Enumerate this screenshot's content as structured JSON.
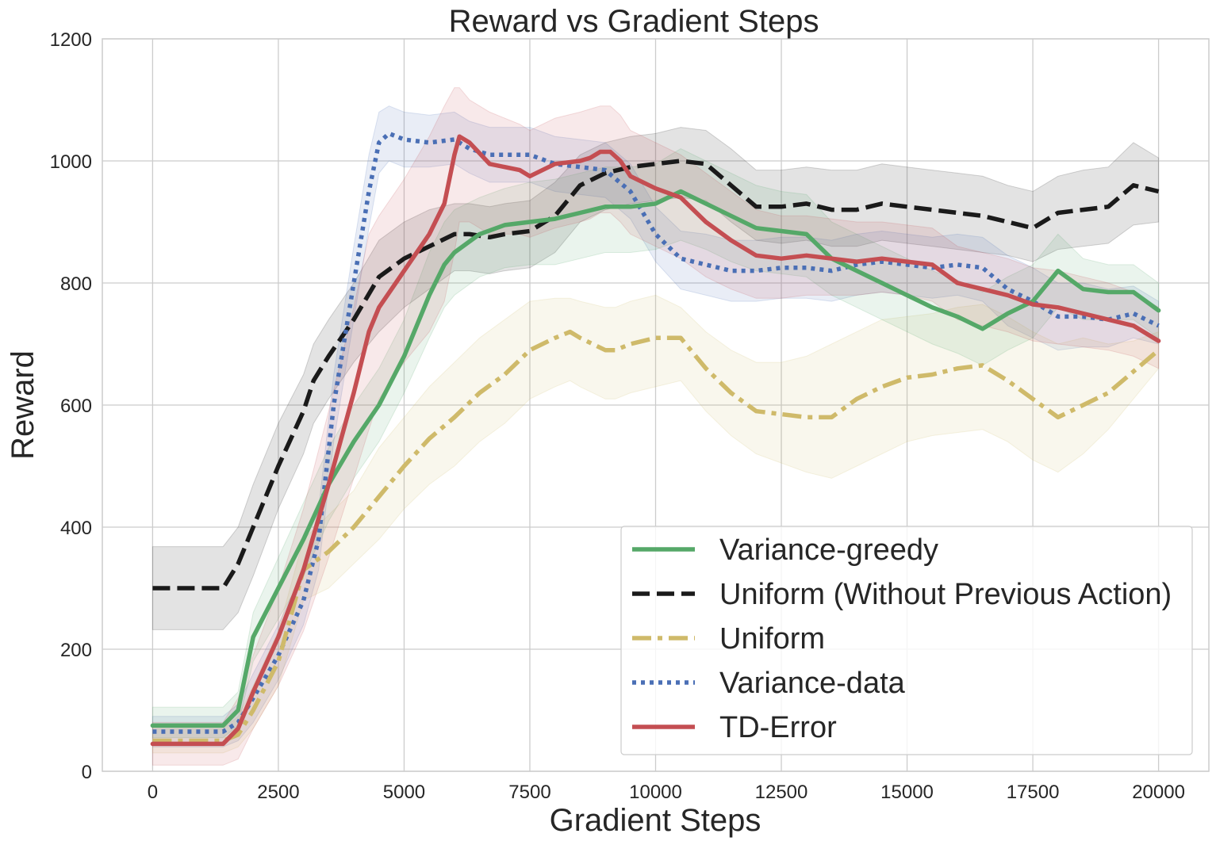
{
  "chart_data": {
    "type": "line",
    "title": "Reward vs Gradient Steps",
    "xlabel": "Gradient Steps",
    "ylabel": "Reward",
    "xlim": [
      -1000,
      21000
    ],
    "ylim": [
      0,
      1200
    ],
    "xticks": [
      0,
      2500,
      5000,
      7500,
      10000,
      12500,
      15000,
      17500,
      20000
    ],
    "yticks": [
      0,
      200,
      400,
      600,
      800,
      1000,
      1200
    ],
    "grid": true,
    "legend_position": "lower-right",
    "series": [
      {
        "name": "Uniform (Without Previous Action)",
        "color": "#1a1a1a",
        "style": "dashed",
        "x": [
          0,
          1400,
          1700,
          2000,
          2500,
          3000,
          3200,
          3500,
          4000,
          4500,
          5000,
          5500,
          6000,
          6300,
          6700,
          7000,
          7500,
          8000,
          8500,
          9000,
          9500,
          10000,
          10500,
          11000,
          11500,
          12000,
          12500,
          13000,
          13500,
          14000,
          14500,
          15000,
          15500,
          16000,
          16500,
          17000,
          17500,
          18000,
          18500,
          19000,
          19500,
          20000
        ],
        "y": [
          300,
          300,
          340,
          400,
          500,
          590,
          640,
          680,
          740,
          810,
          840,
          860,
          880,
          880,
          875,
          880,
          885,
          910,
          960,
          980,
          990,
          995,
          1000,
          995,
          960,
          925,
          925,
          930,
          920,
          920,
          930,
          925,
          920,
          915,
          910,
          900,
          890,
          915,
          920,
          925,
          960,
          950
        ],
        "band_low": [
          232,
          232,
          260,
          320,
          430,
          520,
          570,
          610,
          670,
          720,
          760,
          790,
          820,
          820,
          815,
          820,
          825,
          850,
          900,
          920,
          930,
          935,
          940,
          935,
          900,
          870,
          865,
          870,
          860,
          860,
          870,
          865,
          860,
          855,
          850,
          845,
          835,
          855,
          860,
          865,
          895,
          900
        ],
        "band_high": [
          368,
          368,
          400,
          470,
          570,
          650,
          700,
          740,
          800,
          870,
          900,
          920,
          930,
          930,
          925,
          930,
          935,
          965,
          1010,
          1030,
          1040,
          1045,
          1055,
          1050,
          1020,
          985,
          985,
          990,
          985,
          985,
          995,
          990,
          985,
          980,
          975,
          960,
          950,
          975,
          985,
          990,
          1030,
          1005
        ]
      },
      {
        "name": "Variance-data",
        "color": "#4a6fb5",
        "style": "dotted",
        "x": [
          0,
          1400,
          1700,
          2000,
          2500,
          3000,
          3300,
          3600,
          4000,
          4300,
          4500,
          4700,
          5000,
          5500,
          6000,
          6300,
          6700,
          7000,
          7500,
          8000,
          8500,
          9000,
          9500,
          10000,
          10500,
          11000,
          11500,
          12000,
          12500,
          13000,
          13500,
          14000,
          14500,
          15000,
          15500,
          16000,
          16500,
          17000,
          17500,
          18000,
          18500,
          19000,
          19500,
          20000
        ],
        "y": [
          65,
          65,
          80,
          120,
          190,
          280,
          380,
          600,
          800,
          950,
          1030,
          1045,
          1035,
          1030,
          1035,
          1020,
          1010,
          1010,
          1010,
          995,
          990,
          985,
          950,
          880,
          840,
          830,
          820,
          820,
          825,
          825,
          820,
          830,
          835,
          830,
          825,
          830,
          825,
          790,
          770,
          745,
          745,
          740,
          750,
          730
        ],
        "band_low": [
          40,
          40,
          50,
          80,
          150,
          240,
          330,
          540,
          740,
          890,
          980,
          1000,
          990,
          990,
          995,
          980,
          965,
          965,
          965,
          950,
          945,
          940,
          905,
          835,
          790,
          780,
          770,
          770,
          775,
          775,
          770,
          780,
          785,
          780,
          775,
          780,
          770,
          730,
          710,
          690,
          695,
          695,
          710,
          700
        ],
        "band_high": [
          90,
          90,
          110,
          160,
          240,
          330,
          430,
          650,
          860,
          1010,
          1080,
          1090,
          1080,
          1075,
          1080,
          1065,
          1055,
          1055,
          1055,
          1040,
          1035,
          1030,
          995,
          925,
          885,
          880,
          870,
          870,
          875,
          875,
          870,
          880,
          885,
          880,
          875,
          880,
          875,
          845,
          825,
          800,
          800,
          790,
          795,
          770
        ]
      },
      {
        "name": "Uniform",
        "color": "#cfba6a",
        "style": "dashdot",
        "x": [
          0,
          1400,
          1700,
          2000,
          2500,
          3000,
          3500,
          4000,
          4500,
          5000,
          5500,
          6000,
          6500,
          7000,
          7500,
          8000,
          8300,
          8500,
          9000,
          9200,
          9500,
          10000,
          10500,
          11000,
          11500,
          12000,
          12500,
          13000,
          13500,
          14000,
          14500,
          15000,
          15500,
          16000,
          16500,
          17000,
          17500,
          18000,
          18500,
          19000,
          19500,
          20000
        ],
        "y": [
          50,
          50,
          60,
          100,
          180,
          330,
          360,
          400,
          450,
          500,
          545,
          580,
          620,
          650,
          690,
          710,
          720,
          710,
          690,
          690,
          700,
          710,
          710,
          660,
          620,
          590,
          585,
          580,
          580,
          610,
          630,
          645,
          650,
          660,
          665,
          640,
          610,
          580,
          600,
          620,
          655,
          690
        ],
        "band_low": [
          30,
          30,
          40,
          70,
          140,
          280,
          300,
          340,
          380,
          430,
          470,
          500,
          540,
          570,
          610,
          630,
          640,
          630,
          610,
          610,
          620,
          630,
          640,
          590,
          550,
          520,
          505,
          490,
          480,
          500,
          520,
          540,
          550,
          555,
          560,
          540,
          510,
          490,
          520,
          560,
          610,
          660
        ],
        "band_high": [
          70,
          70,
          90,
          140,
          230,
          380,
          420,
          460,
          530,
          580,
          630,
          670,
          710,
          740,
          770,
          775,
          775,
          770,
          760,
          760,
          770,
          780,
          760,
          720,
          690,
          670,
          670,
          680,
          700,
          720,
          740,
          745,
          750,
          760,
          765,
          745,
          720,
          700,
          710,
          700,
          705,
          720
        ]
      },
      {
        "name": "Variance-greedy",
        "color": "#55a868",
        "style": "solid",
        "x": [
          0,
          1400,
          1700,
          2000,
          2500,
          3000,
          3500,
          4000,
          4500,
          5000,
          5500,
          5800,
          6000,
          6500,
          7000,
          7500,
          8000,
          8500,
          9000,
          9500,
          10000,
          10500,
          11000,
          11500,
          12000,
          12500,
          13000,
          13500,
          14000,
          14500,
          15000,
          15500,
          16000,
          16500,
          17000,
          17500,
          18000,
          18500,
          19000,
          19500,
          20000
        ],
        "y": [
          75,
          75,
          100,
          220,
          300,
          380,
          470,
          540,
          600,
          680,
          780,
          830,
          850,
          880,
          895,
          900,
          905,
          915,
          925,
          925,
          930,
          950,
          930,
          910,
          890,
          885,
          880,
          840,
          820,
          800,
          780,
          760,
          745,
          725,
          750,
          770,
          820,
          790,
          785,
          785,
          755
        ],
        "band_low": [
          55,
          55,
          75,
          180,
          250,
          320,
          410,
          480,
          540,
          620,
          710,
          760,
          780,
          810,
          825,
          830,
          830,
          840,
          850,
          850,
          855,
          870,
          855,
          835,
          820,
          815,
          810,
          780,
          760,
          740,
          720,
          700,
          685,
          665,
          690,
          710,
          760,
          740,
          740,
          740,
          710
        ],
        "band_high": [
          105,
          105,
          130,
          260,
          350,
          440,
          530,
          600,
          660,
          740,
          850,
          900,
          920,
          940,
          955,
          965,
          970,
          980,
          990,
          990,
          995,
          1020,
          1000,
          980,
          960,
          950,
          945,
          900,
          880,
          860,
          840,
          820,
          805,
          785,
          810,
          830,
          880,
          840,
          830,
          830,
          800
        ]
      },
      {
        "name": "TD-Error",
        "color": "#c44e52",
        "style": "solid",
        "x": [
          0,
          1400,
          1700,
          2000,
          2500,
          3000,
          3500,
          4000,
          4300,
          4500,
          5000,
          5500,
          5800,
          6000,
          6100,
          6300,
          6700,
          7000,
          7300,
          7500,
          8000,
          8500,
          8700,
          8900,
          9100,
          9300,
          9500,
          10000,
          10500,
          11000,
          11500,
          12000,
          12500,
          13000,
          13500,
          14000,
          14500,
          15000,
          15500,
          16000,
          16500,
          17000,
          17500,
          18000,
          18500,
          19000,
          19500,
          20000
        ],
        "y": [
          45,
          45,
          70,
          130,
          220,
          330,
          470,
          620,
          720,
          760,
          820,
          880,
          930,
          1010,
          1040,
          1030,
          995,
          990,
          985,
          975,
          995,
          1000,
          1005,
          1015,
          1015,
          1000,
          975,
          955,
          940,
          900,
          870,
          845,
          840,
          845,
          840,
          835,
          840,
          835,
          830,
          800,
          790,
          780,
          765,
          760,
          750,
          740,
          730,
          705
        ],
        "band_low": [
          10,
          10,
          20,
          70,
          140,
          230,
          350,
          480,
          560,
          610,
          670,
          720,
          770,
          850,
          900,
          900,
          880,
          880,
          880,
          875,
          890,
          900,
          905,
          915,
          915,
          900,
          880,
          860,
          840,
          810,
          790,
          775,
          775,
          780,
          780,
          780,
          785,
          780,
          770,
          740,
          730,
          720,
          705,
          700,
          695,
          690,
          680,
          660
        ],
        "band_high": [
          80,
          80,
          120,
          190,
          300,
          430,
          590,
          760,
          880,
          910,
          970,
          1040,
          1090,
          1120,
          1120,
          1100,
          1080,
          1070,
          1060,
          1050,
          1070,
          1080,
          1085,
          1090,
          1090,
          1075,
          1050,
          1030,
          1010,
          980,
          950,
          920,
          910,
          910,
          905,
          900,
          900,
          895,
          890,
          860,
          850,
          840,
          825,
          820,
          810,
          800,
          785,
          760
        ]
      }
    ],
    "legend_order": [
      "Variance-greedy",
      "Uniform (Without Previous Action)",
      "Uniform",
      "Variance-data",
      "TD-Error"
    ]
  }
}
